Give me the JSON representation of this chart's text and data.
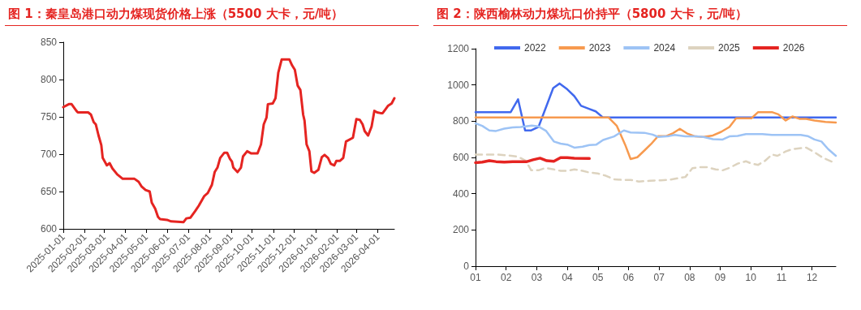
{
  "chart_data": [
    {
      "type": "line",
      "title": "图 1：秦皇岛港口动力煤现货价格上涨（5500 大卡，元/吨）",
      "x": [
        "2025-01-01",
        "2025-01-09",
        "2025-01-13",
        "2025-01-20",
        "2025-01-22",
        "2025-02-06",
        "2025-02-10",
        "2025-02-14",
        "2025-02-17",
        "2025-02-21",
        "2025-02-25",
        "2025-02-27",
        "2025-03-05",
        "2025-03-09",
        "2025-03-13",
        "2025-03-20",
        "2025-03-28",
        "2025-04-14",
        "2025-04-20",
        "2025-04-24",
        "2025-04-30",
        "2025-05-06",
        "2025-05-09",
        "2025-05-14",
        "2025-05-18",
        "2025-05-21",
        "2025-05-31",
        "2025-06-06",
        "2025-06-24",
        "2025-06-28",
        "2025-07-04",
        "2025-07-11",
        "2025-07-16",
        "2025-07-24",
        "2025-07-29",
        "2025-08-04",
        "2025-08-08",
        "2025-08-12",
        "2025-08-16",
        "2025-08-22",
        "2025-08-26",
        "2025-08-30",
        "2025-09-02",
        "2025-09-04",
        "2025-09-10",
        "2025-09-15",
        "2025-09-18",
        "2025-09-24",
        "2025-09-30",
        "2025-10-09",
        "2025-10-14",
        "2025-10-18",
        "2025-10-22",
        "2025-10-24",
        "2025-10-31",
        "2025-11-04",
        "2025-11-08",
        "2025-11-13",
        "2025-11-24",
        "2025-11-28",
        "2025-12-02",
        "2025-12-06",
        "2025-12-10",
        "2025-12-14",
        "2025-12-16",
        "2025-12-19",
        "2025-12-23",
        "2025-12-26",
        "2025-12-30",
        "2026-01-05",
        "2026-01-10",
        "2026-01-14",
        "2026-01-19",
        "2026-01-23",
        "2026-01-28",
        "2026-01-31",
        "2026-02-05",
        "2026-02-10",
        "2026-02-14",
        "2026-02-24",
        "2026-03-01",
        "2026-03-06",
        "2026-03-10",
        "2026-03-13",
        "2026-03-18",
        "2026-03-23",
        "2026-03-27",
        "2026-03-31",
        "2026-04-05",
        "2026-04-08",
        "2026-04-12",
        "2026-04-16",
        "2026-04-21",
        "2026-04-25"
      ],
      "series": [
        {
          "color": "#e52421",
          "values": [
            763,
            767,
            767,
            758,
            756,
            756,
            753,
            743,
            740,
            725,
            712,
            695,
            685,
            688,
            681,
            673,
            667,
            667,
            663,
            657,
            652,
            650,
            635,
            627,
            616,
            613,
            612,
            610,
            609,
            614,
            615,
            624,
            631,
            644,
            648,
            659,
            676,
            682,
            695,
            702,
            702,
            694,
            690,
            682,
            676,
            682,
            697,
            704,
            701,
            701,
            713,
            740,
            749,
            767,
            768,
            775,
            809,
            827,
            827,
            819,
            813,
            792,
            786,
            753,
            745,
            713,
            704,
            677,
            675,
            679,
            696,
            699,
            695,
            687,
            685,
            691,
            691,
            695,
            717,
            722,
            747,
            746,
            740,
            731,
            725,
            737,
            758,
            756,
            755,
            755,
            760,
            765,
            768,
            775
          ]
        }
      ],
      "xlim": [
        "2025-01-01",
        "2026-04-25"
      ],
      "xticks": [
        "2025-01-01",
        "2025-02-01",
        "2025-03-01",
        "2025-04-01",
        "2025-05-01",
        "2025-06-01",
        "2025-07-01",
        "2025-08-01",
        "2025-09-01",
        "2025-10-01",
        "2025-11-01",
        "2025-12-01",
        "2026-01-01",
        "2026-02-01",
        "2026-03-01",
        "2026-04-01"
      ],
      "ylim": [
        600,
        850
      ],
      "yticks": [
        600,
        650,
        700,
        750,
        800,
        850
      ],
      "grid": false,
      "legend": false,
      "marker": "none",
      "line_style": "solid"
    },
    {
      "type": "line",
      "title": "图 2：陕西榆林动力煤坑口价持平（5800 大卡，元/吨）",
      "series": [
        {
          "name": "2022",
          "color": "#4169ee",
          "line_style": "solid",
          "x": [
            1,
            2.15,
            2.39,
            2.62,
            2.82,
            3.06,
            3.29,
            3.54,
            3.75,
            4.0,
            4.23,
            4.45,
            4.71,
            4.93,
            5.17,
            12.78
          ],
          "values": [
            850,
            850,
            921,
            749,
            749,
            769,
            871,
            983,
            1008,
            976,
            938,
            885,
            868,
            854,
            820,
            820
          ]
        },
        {
          "name": "2023",
          "color": "#f79a4f",
          "line_style": "solid",
          "x": [
            1,
            5.35,
            5.62,
            5.89,
            6.07,
            6.29,
            6.52,
            6.74,
            6.97,
            7.24,
            7.46,
            7.68,
            7.91,
            8.18,
            8.45,
            8.76,
            9.03,
            9.3,
            9.52,
            10.02,
            10.24,
            10.69,
            10.9,
            11.14,
            11.36,
            11.59,
            11.81,
            12.08,
            12.44,
            12.78
          ],
          "values": [
            820,
            820,
            774,
            671,
            591,
            601,
            638,
            674,
            718,
            718,
            734,
            758,
            733,
            716,
            713,
            721,
            741,
            768,
            816,
            816,
            850,
            850,
            838,
            804,
            826,
            813,
            813,
            804,
            796,
            793
          ]
        },
        {
          "name": "2024",
          "color": "#9dc3f5",
          "line_style": "solid",
          "x": [
            1,
            1.22,
            1.45,
            1.67,
            1.94,
            2.21,
            2.48,
            2.84,
            3.06,
            3.31,
            3.56,
            3.78,
            4.0,
            4.23,
            4.5,
            4.72,
            4.95,
            5.17,
            5.53,
            5.85,
            6.07,
            6.52,
            6.79,
            6.97,
            7.33,
            7.51,
            7.86,
            8.22,
            8.45,
            8.76,
            9.08,
            9.3,
            9.57,
            9.84,
            10.38,
            10.69,
            11.27,
            11.63,
            11.86,
            12.08,
            12.31,
            12.53,
            12.78
          ],
          "values": [
            788,
            774,
            749,
            746,
            759,
            766,
            768,
            776,
            771,
            746,
            688,
            676,
            671,
            654,
            659,
            668,
            671,
            696,
            716,
            749,
            738,
            736,
            726,
            713,
            718,
            724,
            716,
            716,
            713,
            701,
            699,
            716,
            719,
            729,
            729,
            724,
            724,
            724,
            718,
            699,
            688,
            646,
            609
          ]
        },
        {
          "name": "2025",
          "color": "#ddd3bf",
          "line_style": "dashed",
          "x": [
            1,
            1.67,
            2.03,
            2.39,
            2.64,
            2.82,
            3.06,
            3.29,
            3.56,
            3.78,
            4.0,
            4.23,
            4.5,
            4.72,
            4.99,
            5.26,
            5.53,
            5.8,
            6.07,
            6.34,
            6.7,
            7.06,
            7.33,
            7.68,
            7.86,
            8.09,
            8.31,
            8.58,
            8.85,
            9.08,
            9.3,
            9.57,
            9.84,
            10.02,
            10.24,
            10.47,
            10.69,
            10.87,
            11.14,
            11.36,
            11.81,
            12.08,
            12.35,
            12.78
          ],
          "values": [
            616,
            616,
            612,
            604,
            582,
            529,
            529,
            542,
            534,
            526,
            526,
            534,
            526,
            517,
            512,
            499,
            479,
            476,
            476,
            467,
            471,
            474,
            476,
            487,
            492,
            541,
            546,
            546,
            534,
            529,
            542,
            566,
            579,
            566,
            559,
            582,
            616,
            609,
            633,
            646,
            654,
            629,
            599,
            567
          ]
        },
        {
          "name": "2026",
          "color": "#e52421",
          "line_style": "solid",
          "x": [
            1,
            1.22,
            1.45,
            1.67,
            1.94,
            2.21,
            2.66,
            2.88,
            3.11,
            3.33,
            3.56,
            3.78,
            4.0,
            4.23,
            4.72
          ],
          "values": [
            571,
            574,
            582,
            577,
            574,
            576,
            576,
            587,
            596,
            582,
            579,
            599,
            599,
            596,
            594
          ]
        }
      ],
      "xlim": [
        1,
        12.78
      ],
      "xticks": [
        {
          "value": 1,
          "label": "01"
        },
        {
          "value": 2,
          "label": "02"
        },
        {
          "value": 3,
          "label": "03"
        },
        {
          "value": 4,
          "label": "04"
        },
        {
          "value": 5,
          "label": "05"
        },
        {
          "value": 6,
          "label": "06"
        },
        {
          "value": 7,
          "label": "07"
        },
        {
          "value": 8,
          "label": "08"
        },
        {
          "value": 9,
          "label": "09"
        },
        {
          "value": 10,
          "label": "10"
        },
        {
          "value": 11,
          "label": "11"
        },
        {
          "value": 12,
          "label": "12"
        }
      ],
      "ylim": [
        0,
        1200
      ],
      "yticks": [
        0,
        200,
        400,
        600,
        800,
        1000,
        1200
      ],
      "grid": false,
      "legend": "top",
      "marker": "none"
    }
  ]
}
